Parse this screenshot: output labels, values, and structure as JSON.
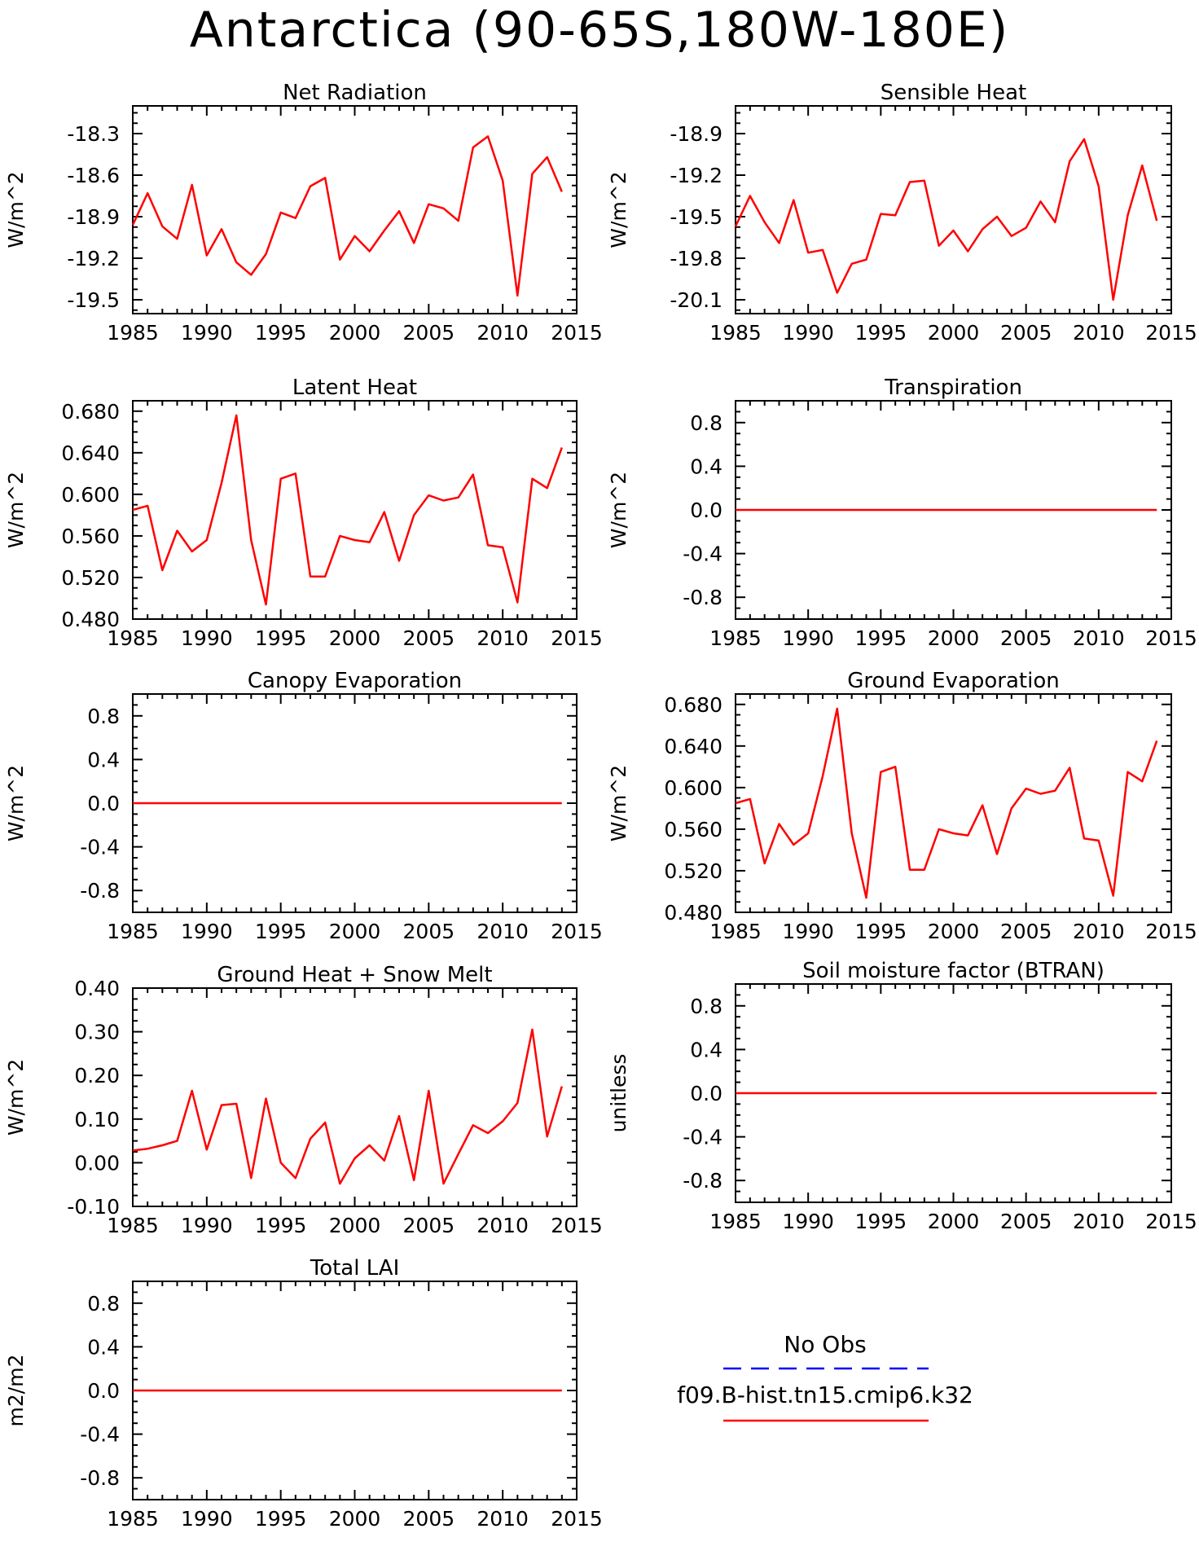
{
  "page": {
    "title": "Antarctica (90-65S,180W-180E)"
  },
  "colors": {
    "model": "#ff0000",
    "obs": "#0000ff",
    "axes": "#000000"
  },
  "legend": {
    "obs_label": "No Obs",
    "model_label": "f09.B-hist.tn15.cmip6.k32"
  },
  "chart_data": [
    {
      "type": "line",
      "title": "Net Radiation",
      "ylabel": "W/m^2",
      "xlim": [
        1985,
        2015
      ],
      "xticks": [
        1985,
        1990,
        1995,
        2000,
        2005,
        2010,
        2015
      ],
      "xtick_labels": [
        "1985",
        "1990",
        "1995",
        "2000",
        "2005",
        "2010",
        "2015"
      ],
      "ylim": [
        -19.6,
        -18.1
      ],
      "yticks": [
        -19.5,
        -19.2,
        -18.9,
        -18.6,
        -18.3
      ],
      "ytick_labels": [
        "-19.5",
        "-19.2",
        "-18.9",
        "-18.6",
        "-18.3"
      ],
      "x": [
        1985,
        1986,
        1987,
        1988,
        1989,
        1990,
        1991,
        1992,
        1993,
        1994,
        1995,
        1996,
        1997,
        1998,
        1999,
        2000,
        2001,
        2002,
        2003,
        2004,
        2005,
        2006,
        2007,
        2008,
        2009,
        2010,
        2011,
        2012,
        2013,
        2014
      ],
      "series": [
        {
          "values": [
            -18.96,
            -18.73,
            -18.97,
            -19.06,
            -18.67,
            -19.18,
            -18.99,
            -19.23,
            -19.32,
            -19.17,
            -18.87,
            -18.91,
            -18.68,
            -18.62,
            -19.21,
            -19.04,
            -19.15,
            -19.0,
            -18.86,
            -19.09,
            -18.81,
            -18.84,
            -18.93,
            -18.4,
            -18.32,
            -18.64,
            -19.47,
            -18.59,
            -18.47,
            -18.72
          ]
        }
      ]
    },
    {
      "type": "line",
      "title": "Sensible Heat",
      "ylabel": "W/m^2",
      "xlim": [
        1985,
        2015
      ],
      "xticks": [
        1985,
        1990,
        1995,
        2000,
        2005,
        2010,
        2015
      ],
      "xtick_labels": [
        "1985",
        "1990",
        "1995",
        "2000",
        "2005",
        "2010",
        "2015"
      ],
      "ylim": [
        -20.2,
        -18.7
      ],
      "yticks": [
        -20.1,
        -19.8,
        -19.5,
        -19.2,
        -18.9
      ],
      "ytick_labels": [
        "-20.1",
        "-19.8",
        "-19.5",
        "-19.2",
        "-18.9"
      ],
      "x": [
        1985,
        1986,
        1987,
        1988,
        1989,
        1990,
        1991,
        1992,
        1993,
        1994,
        1995,
        1996,
        1997,
        1998,
        1999,
        2000,
        2001,
        2002,
        2003,
        2004,
        2005,
        2006,
        2007,
        2008,
        2009,
        2010,
        2011,
        2012,
        2013,
        2014
      ],
      "series": [
        {
          "values": [
            -19.57,
            -19.35,
            -19.54,
            -19.69,
            -19.38,
            -19.76,
            -19.74,
            -20.05,
            -19.84,
            -19.81,
            -19.48,
            -19.49,
            -19.25,
            -19.24,
            -19.71,
            -19.6,
            -19.75,
            -19.59,
            -19.5,
            -19.64,
            -19.58,
            -19.39,
            -19.54,
            -19.1,
            -18.94,
            -19.28,
            -20.1,
            -19.49,
            -19.13,
            -19.53
          ]
        }
      ]
    },
    {
      "type": "line",
      "title": "Latent Heat",
      "ylabel": "W/m^2",
      "xlim": [
        1985,
        2015
      ],
      "xticks": [
        1985,
        1990,
        1995,
        2000,
        2005,
        2010,
        2015
      ],
      "xtick_labels": [
        "1985",
        "1990",
        "1995",
        "2000",
        "2005",
        "2010",
        "2015"
      ],
      "ylim": [
        0.48,
        0.69
      ],
      "yticks": [
        0.48,
        0.52,
        0.56,
        0.6,
        0.64,
        0.68
      ],
      "ytick_labels": [
        "0.480",
        "0.520",
        "0.560",
        "0.600",
        "0.640",
        "0.680"
      ],
      "x": [
        1985,
        1986,
        1987,
        1988,
        1989,
        1990,
        1991,
        1992,
        1993,
        1994,
        1995,
        1996,
        1997,
        1998,
        1999,
        2000,
        2001,
        2002,
        2003,
        2004,
        2005,
        2006,
        2007,
        2008,
        2009,
        2010,
        2011,
        2012,
        2013,
        2014
      ],
      "series": [
        {
          "values": [
            0.585,
            0.589,
            0.527,
            0.565,
            0.545,
            0.556,
            0.611,
            0.676,
            0.556,
            0.494,
            0.615,
            0.62,
            0.521,
            0.521,
            0.56,
            0.556,
            0.554,
            0.583,
            0.536,
            0.58,
            0.599,
            0.594,
            0.597,
            0.619,
            0.551,
            0.549,
            0.496,
            0.615,
            0.606,
            0.645
          ]
        }
      ]
    },
    {
      "type": "line",
      "title": "Transpiration",
      "ylabel": "W/m^2",
      "xlim": [
        1985,
        2015
      ],
      "xticks": [
        1985,
        1990,
        1995,
        2000,
        2005,
        2010,
        2015
      ],
      "xtick_labels": [
        "1985",
        "1990",
        "1995",
        "2000",
        "2005",
        "2010",
        "2015"
      ],
      "ylim": [
        -1.0,
        1.0
      ],
      "yticks": [
        -0.8,
        -0.4,
        0.0,
        0.4,
        0.8
      ],
      "ytick_labels": [
        "-0.8",
        "-0.4",
        "0.0",
        "0.4",
        "0.8"
      ],
      "x": [
        1985,
        1986,
        1987,
        1988,
        1989,
        1990,
        1991,
        1992,
        1993,
        1994,
        1995,
        1996,
        1997,
        1998,
        1999,
        2000,
        2001,
        2002,
        2003,
        2004,
        2005,
        2006,
        2007,
        2008,
        2009,
        2010,
        2011,
        2012,
        2013,
        2014
      ],
      "series": [
        {
          "values": [
            0,
            0,
            0,
            0,
            0,
            0,
            0,
            0,
            0,
            0,
            0,
            0,
            0,
            0,
            0,
            0,
            0,
            0,
            0,
            0,
            0,
            0,
            0,
            0,
            0,
            0,
            0,
            0,
            0,
            0
          ]
        }
      ]
    },
    {
      "type": "line",
      "title": "Canopy Evaporation",
      "ylabel": "W/m^2",
      "xlim": [
        1985,
        2015
      ],
      "xticks": [
        1985,
        1990,
        1995,
        2000,
        2005,
        2010,
        2015
      ],
      "xtick_labels": [
        "1985",
        "1990",
        "1995",
        "2000",
        "2005",
        "2010",
        "2015"
      ],
      "ylim": [
        -1.0,
        1.0
      ],
      "yticks": [
        -0.8,
        -0.4,
        0.0,
        0.4,
        0.8
      ],
      "ytick_labels": [
        "-0.8",
        "-0.4",
        "0.0",
        "0.4",
        "0.8"
      ],
      "x": [
        1985,
        1986,
        1987,
        1988,
        1989,
        1990,
        1991,
        1992,
        1993,
        1994,
        1995,
        1996,
        1997,
        1998,
        1999,
        2000,
        2001,
        2002,
        2003,
        2004,
        2005,
        2006,
        2007,
        2008,
        2009,
        2010,
        2011,
        2012,
        2013,
        2014
      ],
      "series": [
        {
          "values": [
            0,
            0,
            0,
            0,
            0,
            0,
            0,
            0,
            0,
            0,
            0,
            0,
            0,
            0,
            0,
            0,
            0,
            0,
            0,
            0,
            0,
            0,
            0,
            0,
            0,
            0,
            0,
            0,
            0,
            0
          ]
        }
      ]
    },
    {
      "type": "line",
      "title": "Ground Evaporation",
      "ylabel": "W/m^2",
      "xlim": [
        1985,
        2015
      ],
      "xticks": [
        1985,
        1990,
        1995,
        2000,
        2005,
        2010,
        2015
      ],
      "xtick_labels": [
        "1985",
        "1990",
        "1995",
        "2000",
        "2005",
        "2010",
        "2015"
      ],
      "ylim": [
        0.48,
        0.69
      ],
      "yticks": [
        0.48,
        0.52,
        0.56,
        0.6,
        0.64,
        0.68
      ],
      "ytick_labels": [
        "0.480",
        "0.520",
        "0.560",
        "0.600",
        "0.640",
        "0.680"
      ],
      "x": [
        1985,
        1986,
        1987,
        1988,
        1989,
        1990,
        1991,
        1992,
        1993,
        1994,
        1995,
        1996,
        1997,
        1998,
        1999,
        2000,
        2001,
        2002,
        2003,
        2004,
        2005,
        2006,
        2007,
        2008,
        2009,
        2010,
        2011,
        2012,
        2013,
        2014
      ],
      "series": [
        {
          "values": [
            0.585,
            0.589,
            0.527,
            0.565,
            0.545,
            0.556,
            0.611,
            0.676,
            0.556,
            0.494,
            0.615,
            0.62,
            0.521,
            0.521,
            0.56,
            0.556,
            0.554,
            0.583,
            0.536,
            0.58,
            0.599,
            0.594,
            0.597,
            0.619,
            0.551,
            0.549,
            0.496,
            0.615,
            0.606,
            0.645
          ]
        }
      ]
    },
    {
      "type": "line",
      "title": "Ground Heat + Snow Melt",
      "ylabel": "W/m^2",
      "xlim": [
        1985,
        2015
      ],
      "xticks": [
        1985,
        1990,
        1995,
        2000,
        2005,
        2010,
        2015
      ],
      "xtick_labels": [
        "1985",
        "1990",
        "1995",
        "2000",
        "2005",
        "2010",
        "2015"
      ],
      "ylim": [
        -0.1,
        0.4
      ],
      "yticks": [
        -0.1,
        0.0,
        0.1,
        0.2,
        0.3,
        0.4
      ],
      "ytick_labels": [
        "-0.10",
        "0.00",
        "0.10",
        "0.20",
        "0.30",
        "0.40"
      ],
      "x": [
        1985,
        1986,
        1987,
        1988,
        1989,
        1990,
        1991,
        1992,
        1993,
        1994,
        1995,
        1996,
        1997,
        1998,
        1999,
        2000,
        2001,
        2002,
        2003,
        2004,
        2005,
        2006,
        2007,
        2008,
        2009,
        2010,
        2011,
        2012,
        2013,
        2014
      ],
      "series": [
        {
          "values": [
            0.028,
            0.032,
            0.04,
            0.05,
            0.165,
            0.03,
            0.132,
            0.135,
            -0.035,
            0.147,
            0.0,
            -0.035,
            0.055,
            0.092,
            -0.048,
            0.01,
            0.04,
            0.005,
            0.107,
            -0.04,
            0.165,
            -0.048,
            0.02,
            0.086,
            0.068,
            0.095,
            0.137,
            0.305,
            0.06,
            0.175
          ]
        }
      ]
    },
    {
      "type": "line",
      "title": "Soil moisture factor (BTRAN)",
      "ylabel": "unitless",
      "xlim": [
        1985,
        2015
      ],
      "xticks": [
        1985,
        1990,
        1995,
        2000,
        2005,
        2010,
        2015
      ],
      "xtick_labels": [
        "1985",
        "1990",
        "1995",
        "2000",
        "2005",
        "2010",
        "2015"
      ],
      "ylim": [
        -1.0,
        1.0
      ],
      "yticks": [
        -0.8,
        -0.4,
        0.0,
        0.4,
        0.8
      ],
      "ytick_labels": [
        "-0.8",
        "-0.4",
        "0.0",
        "0.4",
        "0.8"
      ],
      "x": [
        1985,
        1986,
        1987,
        1988,
        1989,
        1990,
        1991,
        1992,
        1993,
        1994,
        1995,
        1996,
        1997,
        1998,
        1999,
        2000,
        2001,
        2002,
        2003,
        2004,
        2005,
        2006,
        2007,
        2008,
        2009,
        2010,
        2011,
        2012,
        2013,
        2014
      ],
      "series": [
        {
          "values": [
            0,
            0,
            0,
            0,
            0,
            0,
            0,
            0,
            0,
            0,
            0,
            0,
            0,
            0,
            0,
            0,
            0,
            0,
            0,
            0,
            0,
            0,
            0,
            0,
            0,
            0,
            0,
            0,
            0,
            0
          ]
        }
      ]
    },
    {
      "type": "line",
      "title": "Total LAI",
      "ylabel": "m2/m2",
      "xlim": [
        1985,
        2015
      ],
      "xticks": [
        1985,
        1990,
        1995,
        2000,
        2005,
        2010,
        2015
      ],
      "xtick_labels": [
        "1985",
        "1990",
        "1995",
        "2000",
        "2005",
        "2010",
        "2015"
      ],
      "ylim": [
        -1.0,
        1.0
      ],
      "yticks": [
        -0.8,
        -0.4,
        0.0,
        0.4,
        0.8
      ],
      "ytick_labels": [
        "-0.8",
        "-0.4",
        "0.0",
        "0.4",
        "0.8"
      ],
      "x": [
        1985,
        1986,
        1987,
        1988,
        1989,
        1990,
        1991,
        1992,
        1993,
        1994,
        1995,
        1996,
        1997,
        1998,
        1999,
        2000,
        2001,
        2002,
        2003,
        2004,
        2005,
        2006,
        2007,
        2008,
        2009,
        2010,
        2011,
        2012,
        2013,
        2014
      ],
      "series": [
        {
          "values": [
            0,
            0,
            0,
            0,
            0,
            0,
            0,
            0,
            0,
            0,
            0,
            0,
            0,
            0,
            0,
            0,
            0,
            0,
            0,
            0,
            0,
            0,
            0,
            0,
            0,
            0,
            0,
            0,
            0,
            0
          ]
        }
      ]
    }
  ]
}
